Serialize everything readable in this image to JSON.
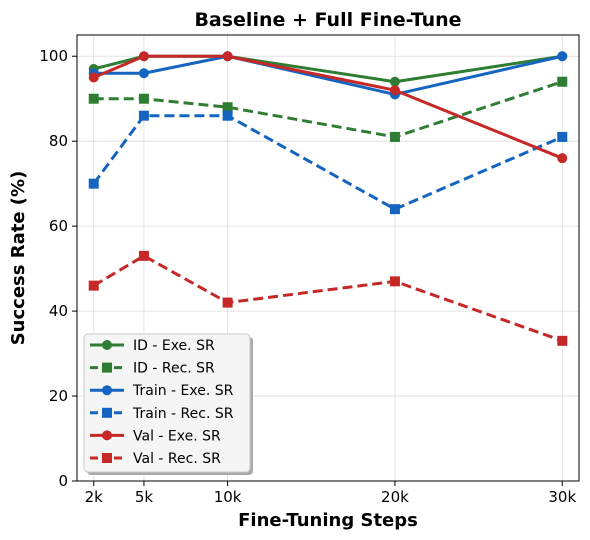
{
  "chart_data": {
    "type": "line",
    "title": "Baseline + Full Fine-Tune",
    "xlabel": "Fine-Tuning Steps",
    "ylabel": "Success Rate (%)",
    "x": [
      2000,
      5000,
      10000,
      20000,
      30000
    ],
    "x_tick_labels": [
      "2k",
      "5k",
      "10k",
      "20k",
      "30k"
    ],
    "xlim": [
      1000,
      31000
    ],
    "ylim": [
      0,
      105
    ],
    "y_ticks": [
      0,
      20,
      40,
      60,
      80,
      100
    ],
    "grid": true,
    "legend_position": "lower-left",
    "series": [
      {
        "name": "ID - Exe. SR",
        "color": "#2e7d32",
        "style": "solid",
        "marker": "circle",
        "values": [
          97,
          100,
          100,
          94,
          100
        ]
      },
      {
        "name": "ID - Rec. SR",
        "color": "#2e7d32",
        "style": "dashed",
        "marker": "square",
        "values": [
          90,
          90,
          88,
          81,
          94
        ]
      },
      {
        "name": "Train - Exe. SR",
        "color": "#1565c0",
        "style": "solid",
        "marker": "circle",
        "values": [
          96,
          96,
          100,
          91,
          100
        ]
      },
      {
        "name": "Train - Rec. SR",
        "color": "#1565c0",
        "style": "dashed",
        "marker": "square",
        "values": [
          70,
          86,
          86,
          64,
          81
        ]
      },
      {
        "name": "Val - Exe. SR",
        "color": "#c62828",
        "style": "solid",
        "marker": "circle",
        "values": [
          95,
          100,
          100,
          92,
          76
        ]
      },
      {
        "name": "Val - Rec. SR",
        "color": "#c62828",
        "style": "dashed",
        "marker": "square",
        "values": [
          46,
          53,
          42,
          47,
          33
        ]
      }
    ]
  }
}
